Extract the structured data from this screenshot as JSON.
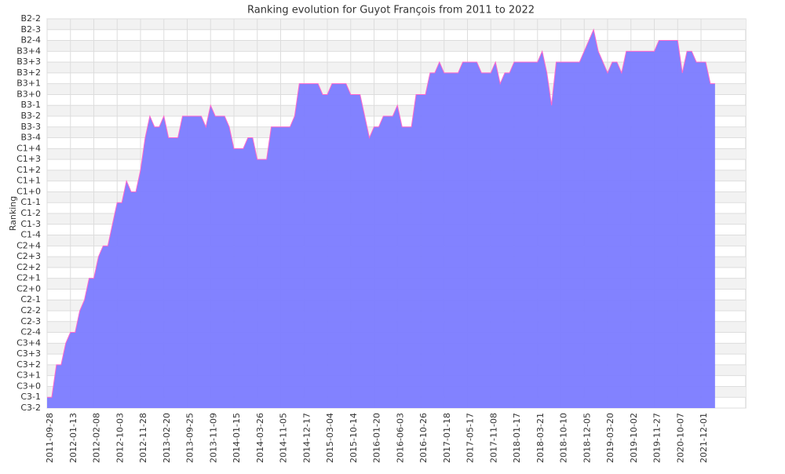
{
  "chart_data": {
    "type": "area",
    "title": "Ranking evolution for Guyot François from 2011 to 2022",
    "y_label": "Ranking",
    "categories": [
      "2011-09-28",
      null,
      null,
      null,
      null,
      "2012-01-13",
      null,
      null,
      null,
      null,
      "2012-02-08",
      null,
      null,
      null,
      null,
      "2012-10-03",
      null,
      null,
      null,
      null,
      "2012-11-28",
      null,
      null,
      null,
      null,
      "2013-02-20",
      null,
      null,
      null,
      null,
      "2013-09-25",
      null,
      null,
      null,
      null,
      "2013-11-09",
      null,
      null,
      null,
      null,
      "2014-01-15",
      null,
      null,
      null,
      null,
      "2014-03-26",
      null,
      null,
      null,
      null,
      "2014-11-05",
      null,
      null,
      null,
      null,
      "2014-12-17",
      null,
      null,
      null,
      null,
      "2015-03-04",
      null,
      null,
      null,
      null,
      "2015-10-14",
      null,
      null,
      null,
      null,
      "2016-01-20",
      null,
      null,
      null,
      null,
      "2016-06-03",
      null,
      null,
      null,
      null,
      "2016-10-26",
      null,
      null,
      null,
      null,
      "2017-01-18",
      null,
      null,
      null,
      null,
      "2017-05-17",
      null,
      null,
      null,
      null,
      "2017-11-08",
      null,
      null,
      null,
      null,
      "2018-01-17",
      null,
      null,
      null,
      null,
      "2018-03-21",
      null,
      null,
      null,
      null,
      "2018-10-10",
      null,
      null,
      null,
      null,
      "2018-12-05",
      null,
      null,
      null,
      null,
      "2019-03-20",
      null,
      null,
      null,
      null,
      "2019-10-02",
      null,
      null,
      null,
      null,
      "2019-11-27",
      null,
      null,
      null,
      null,
      "2020-10-07",
      null,
      null,
      null,
      null,
      "2021-12-01",
      null,
      null,
      null
    ],
    "series": [
      {
        "name": "Ranking",
        "color": "#7b7bff",
        "line_color": "#ff66cc",
        "values": [
          1,
          1,
          4,
          4,
          6,
          7,
          7,
          9,
          10,
          12,
          12,
          14,
          15,
          15,
          17,
          19,
          19,
          21,
          20,
          20,
          22,
          25,
          27,
          26,
          26,
          27,
          25,
          25,
          25,
          27,
          27,
          27,
          27,
          27,
          26,
          28,
          27,
          27,
          27,
          26,
          24,
          24,
          24,
          25,
          25,
          23,
          23,
          23,
          26,
          26,
          26,
          26,
          26,
          27,
          30,
          30,
          30,
          30,
          30,
          29,
          29,
          30,
          30,
          30,
          30,
          29,
          29,
          29,
          27,
          25,
          26,
          26,
          27,
          27,
          27,
          28,
          26,
          26,
          26,
          29,
          29,
          29,
          31,
          31,
          32,
          31,
          31,
          31,
          31,
          32,
          32,
          32,
          32,
          31,
          31,
          31,
          32,
          30,
          31,
          31,
          32,
          32,
          32,
          32,
          32,
          32,
          33,
          31,
          28,
          32,
          32,
          32,
          32,
          32,
          32,
          33,
          34,
          35,
          33,
          32,
          31,
          32,
          32,
          31,
          33,
          33,
          33,
          33,
          33,
          33,
          33,
          34,
          34,
          34,
          34,
          34,
          31,
          33,
          33,
          32,
          32,
          32,
          30,
          30
        ]
      }
    ],
    "ylim": [
      0,
      36
    ],
    "yticks": [
      {
        "value": 0,
        "label": "C3-2"
      },
      {
        "value": 1,
        "label": "C3-1"
      },
      {
        "value": 2,
        "label": "C3+0"
      },
      {
        "value": 3,
        "label": "C3+1"
      },
      {
        "value": 4,
        "label": "C3+2"
      },
      {
        "value": 5,
        "label": "C3+3"
      },
      {
        "value": 6,
        "label": "C3+4"
      },
      {
        "value": 7,
        "label": "C2-4"
      },
      {
        "value": 8,
        "label": "C2-3"
      },
      {
        "value": 9,
        "label": "C2-2"
      },
      {
        "value": 10,
        "label": "C2-1"
      },
      {
        "value": 11,
        "label": "C2+0"
      },
      {
        "value": 12,
        "label": "C2+1"
      },
      {
        "value": 13,
        "label": "C2+2"
      },
      {
        "value": 14,
        "label": "C2+3"
      },
      {
        "value": 15,
        "label": "C2+4"
      },
      {
        "value": 16,
        "label": "C1-4"
      },
      {
        "value": 17,
        "label": "C1-3"
      },
      {
        "value": 18,
        "label": "C1-2"
      },
      {
        "value": 19,
        "label": "C1-1"
      },
      {
        "value": 20,
        "label": "C1+0"
      },
      {
        "value": 21,
        "label": "C1+1"
      },
      {
        "value": 22,
        "label": "C1+2"
      },
      {
        "value": 23,
        "label": "C1+3"
      },
      {
        "value": 24,
        "label": "C1+4"
      },
      {
        "value": 25,
        "label": "B3-4"
      },
      {
        "value": 26,
        "label": "B3-3"
      },
      {
        "value": 27,
        "label": "B3-2"
      },
      {
        "value": 28,
        "label": "B3-1"
      },
      {
        "value": 29,
        "label": "B3+0"
      },
      {
        "value": 30,
        "label": "B3+1"
      },
      {
        "value": 31,
        "label": "B3+2"
      },
      {
        "value": 32,
        "label": "B3+3"
      },
      {
        "value": 33,
        "label": "B3+4"
      },
      {
        "value": 34,
        "label": "B2-4"
      },
      {
        "value": 35,
        "label": "B2-3"
      },
      {
        "value": 36,
        "label": "B2-2"
      }
    ],
    "grid": true
  }
}
